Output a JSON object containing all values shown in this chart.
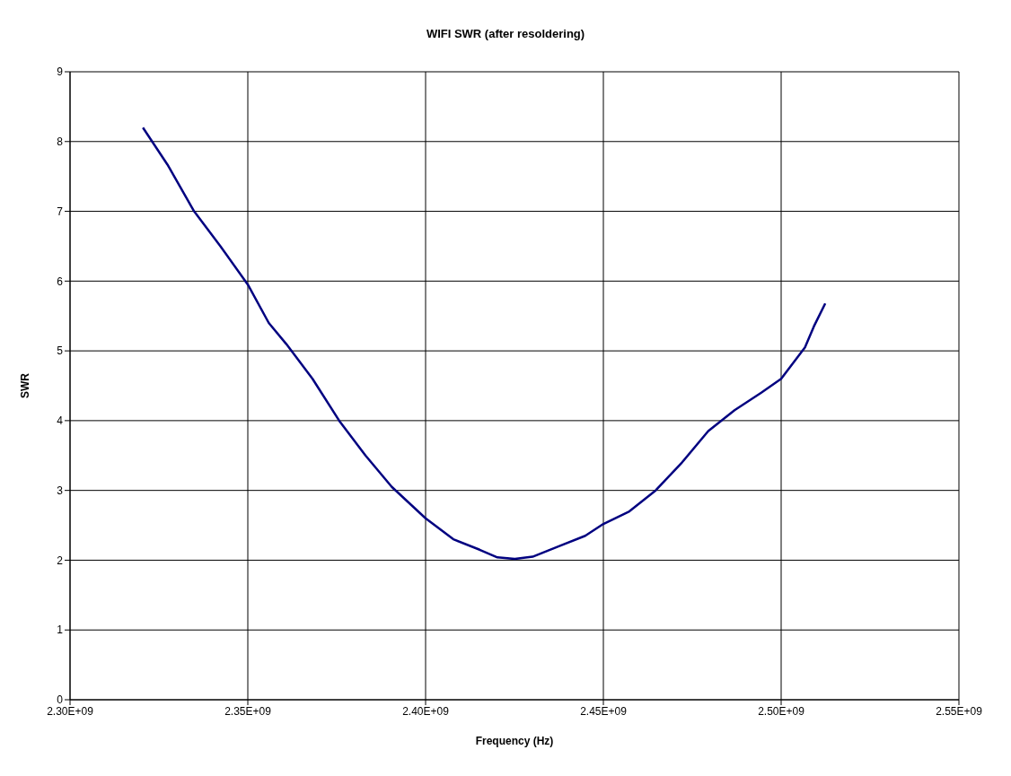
{
  "chart_data": {
    "type": "line",
    "title": "WIFI SWR (after resoldering)",
    "xlabel": "Frequency (Hz)",
    "ylabel": "SWR",
    "x": [
      2320500000.0,
      2327400000.0,
      2334900000.0,
      2342300000.0,
      2350000000.0,
      2355900000.0,
      2360800000.0,
      2368200000.0,
      2375700000.0,
      2383100000.0,
      2390500000.0,
      2400000000.0,
      2407800000.0,
      2415200000.0,
      2420200000.0,
      2425100000.0,
      2430100000.0,
      2437500000.0,
      2444900000.0,
      2450000000.0,
      2457300000.0,
      2464700000.0,
      2472100000.0,
      2479500000.0,
      2486900000.0,
      2494400000.0,
      2500000000.0,
      2506700000.0,
      2509200000.0,
      2512400000.0
    ],
    "series": [
      {
        "color": "#000080",
        "values": [
          8.2,
          7.67,
          7.0,
          6.5,
          5.95,
          5.4,
          5.1,
          4.6,
          4.0,
          3.5,
          3.05,
          2.6,
          2.3,
          2.15,
          2.04,
          2.02,
          2.05,
          2.2,
          2.35,
          2.52,
          2.7,
          3.0,
          3.4,
          3.85,
          4.15,
          4.4,
          4.6,
          5.05,
          5.35,
          5.68
        ]
      }
    ],
    "xlim": [
      2300000000.0,
      2550000000.0
    ],
    "xticks": [
      {
        "value": 2300000000.0,
        "label": "2.30E+09"
      },
      {
        "value": 2350000000.0,
        "label": "2.35E+09"
      },
      {
        "value": 2400000000.0,
        "label": "2.40E+09"
      },
      {
        "value": 2450000000.0,
        "label": "2.45E+09"
      },
      {
        "value": 2500000000.0,
        "label": "2.50E+09"
      },
      {
        "value": 2550000000.0,
        "label": "2.55E+09"
      }
    ],
    "ylim": [
      0,
      9
    ],
    "yticks": [
      0,
      1,
      2,
      3,
      4,
      5,
      6,
      7,
      8,
      9
    ],
    "grid": true,
    "legend": false,
    "marker": "none",
    "line_style": "solid"
  }
}
